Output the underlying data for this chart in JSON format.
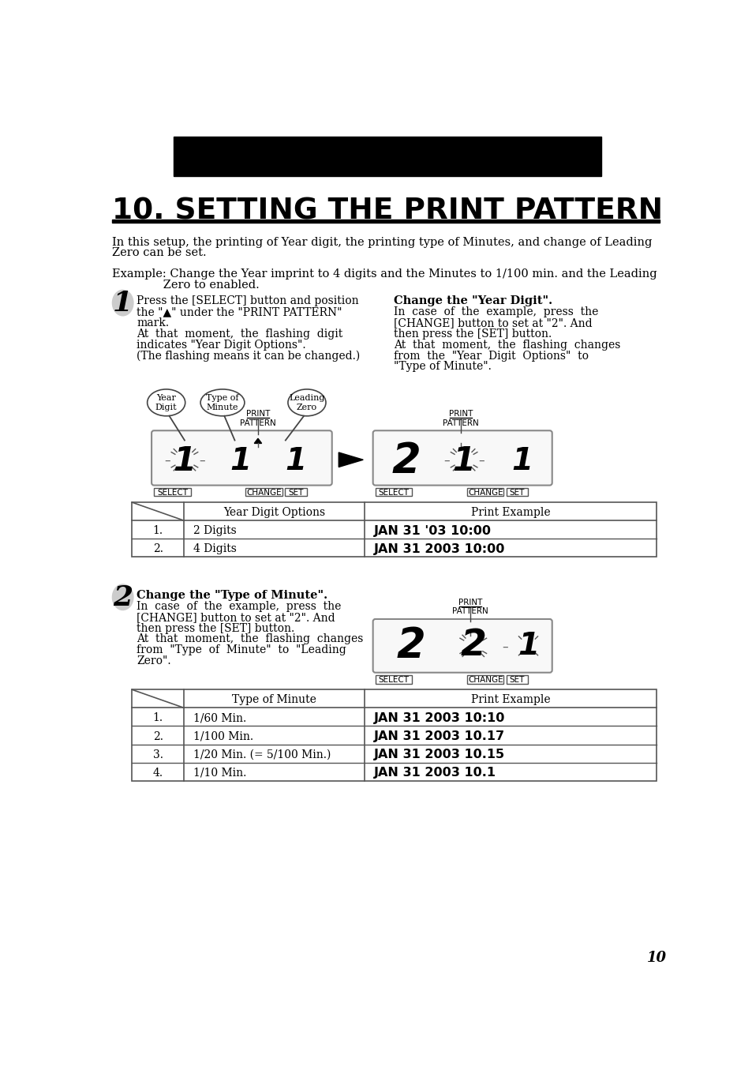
{
  "title": "10. SETTING THE PRINT PATTERN",
  "page_num": "10",
  "bg_color": "#ffffff",
  "body_text1_l1": "In this setup, the printing of Year digit, the printing type of Minutes, and change of Leading",
  "body_text1_l2": "Zero can be set.",
  "example_l1": "Example: Change the Year imprint to 4 digits and the Minutes to 1/100 min. and the Leading",
  "example_l2": "              Zero to enabled.",
  "step1_left": [
    "Press the [SELECT] button and position",
    "the \"▲\" under the \"PRINT PATTERN\"",
    "mark.",
    "At  that  moment,  the  flashing  digit",
    "indicates \"Year Digit Options\".",
    "(The flashing means it can be changed.)"
  ],
  "step1_right_title": "Change the \"Year Digit\".",
  "step1_right": [
    "In  case  of  the  example,  press  the",
    "[CHANGE] button to set at \"2\". And",
    "then press the [SET] button.",
    "At  that  moment,  the  flashing  changes",
    "from  the  \"Year  Digit  Options\"  to",
    "\"Type of Minute\"."
  ],
  "table1_headers": [
    "Year Digit Options",
    "Print Example"
  ],
  "table1_rows": [
    [
      "1.",
      "2 Digits",
      "JAN 31 '03 10:00"
    ],
    [
      "2.",
      "4 Digits",
      "JAN 31 2003 10:00"
    ]
  ],
  "step2_title": "Change the \"Type of Minute\".",
  "step2_left": [
    "In  case  of  the  example,  press  the",
    "[CHANGE] button to set at \"2\". And",
    "then press the [SET] button.",
    "At  that  moment,  the  flashing  changes",
    "from  \"Type  of  Minute\"  to  \"Leading",
    "Zero\"."
  ],
  "table2_headers": [
    "Type of Minute",
    "Print Example"
  ],
  "table2_rows": [
    [
      "1.",
      "1/60 Min.",
      "JAN 31 2003 10:10"
    ],
    [
      "2.",
      "1/100 Min.",
      "JAN 31 2003 10.17"
    ],
    [
      "3.",
      "1/20 Min. (= 5/100 Min.)",
      "JAN 31 2003 10.15"
    ],
    [
      "4.",
      "1/10 Min.",
      "JAN 31 2003 10.1"
    ]
  ]
}
